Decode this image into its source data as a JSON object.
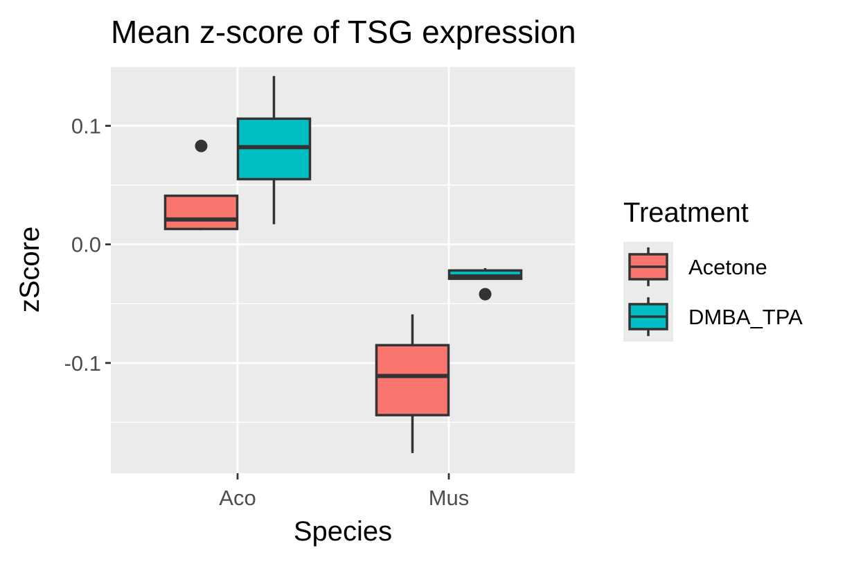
{
  "chart_data": {
    "type": "boxplot",
    "title": "Mean z-score of TSG expression",
    "xlabel": "Species",
    "ylabel": "zScore",
    "categories": [
      "Aco",
      "Mus"
    ],
    "ylim": [
      -0.193,
      0.15
    ],
    "y_ticks": [
      0.1,
      0.0,
      -0.1
    ],
    "y_tick_labels": [
      "0.1",
      "0.0",
      "-0.1"
    ],
    "grid": true,
    "legend": {
      "title": "Treatment",
      "position": "right",
      "entries": [
        "Acetone",
        "DMBA_TPA"
      ]
    },
    "series": [
      {
        "name": "Acetone",
        "color": "#F8766D",
        "boxes": [
          {
            "category": "Aco",
            "whisker_low": 0.012,
            "q1": 0.013,
            "median": 0.021,
            "q3": 0.041,
            "whisker_high": 0.041,
            "outliers": [
              0.083
            ]
          },
          {
            "category": "Mus",
            "whisker_low": -0.176,
            "q1": -0.144,
            "median": -0.111,
            "q3": -0.085,
            "whisker_high": -0.059,
            "outliers": []
          }
        ]
      },
      {
        "name": "DMBA_TPA",
        "color": "#00BFC4",
        "boxes": [
          {
            "category": "Aco",
            "whisker_low": 0.017,
            "q1": 0.055,
            "median": 0.082,
            "q3": 0.106,
            "whisker_high": 0.142,
            "outliers": []
          },
          {
            "category": "Mus",
            "whisker_low": -0.029,
            "q1": -0.029,
            "median": -0.027,
            "q3": -0.022,
            "whisker_high": -0.02,
            "outliers": [
              -0.042
            ]
          }
        ]
      }
    ],
    "colors": {
      "panel_bg": "#EBEBEB",
      "grid": "#FFFFFF",
      "box_stroke": "#333333",
      "axis_text": "#4D4D4D",
      "tick": "#333333"
    }
  }
}
